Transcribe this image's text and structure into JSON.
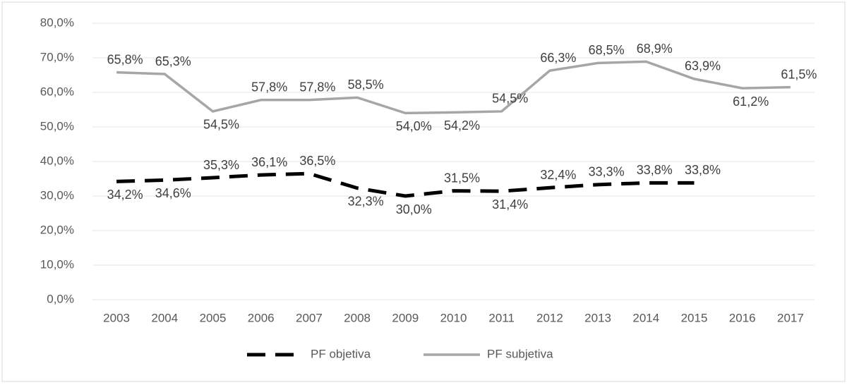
{
  "chart_data": {
    "type": "line",
    "categories": [
      "2003",
      "2004",
      "2005",
      "2006",
      "2007",
      "2008",
      "2009",
      "2010",
      "2011",
      "2012",
      "2013",
      "2014",
      "2015",
      "2016",
      "2017"
    ],
    "series": [
      {
        "name": "PF objetiva",
        "color": "#000000",
        "dash": true,
        "values": [
          34.2,
          34.6,
          35.3,
          36.1,
          36.5,
          32.3,
          30.0,
          31.5,
          31.4,
          32.4,
          33.3,
          33.8,
          33.8,
          null,
          null
        ],
        "value_labels": [
          "34,2%",
          "34,6%",
          "35,3%",
          "36,1%",
          "36,5%",
          "32,3%",
          "30,0%",
          "31,5%",
          "31,4%",
          "32,4%",
          "33,3%",
          "33,8%",
          "33,8%",
          null,
          null
        ]
      },
      {
        "name": "PF subjetiva",
        "color": "#a6a6a6",
        "dash": false,
        "values": [
          65.8,
          65.3,
          54.5,
          57.8,
          57.8,
          58.5,
          54.0,
          54.2,
          54.5,
          66.3,
          68.5,
          68.9,
          63.9,
          61.2,
          61.5
        ],
        "value_labels": [
          "65,8%",
          "65,3%",
          "54,5%",
          "57,8%",
          "57,8%",
          "58,5%",
          "54,0%",
          "54,2%",
          "54,5%",
          "66,3%",
          "68,5%",
          "68,9%",
          "63,9%",
          "61,2%",
          "61,5%"
        ]
      }
    ],
    "ylim": [
      0,
      80
    ],
    "yticks": [
      {
        "value": 0,
        "label": "0,0%"
      },
      {
        "value": 10,
        "label": "10,0%"
      },
      {
        "value": 20,
        "label": "20,0%"
      },
      {
        "value": 30,
        "label": "30,0%"
      },
      {
        "value": 40,
        "label": "40,0%"
      },
      {
        "value": 50,
        "label": "50,0%"
      },
      {
        "value": 60,
        "label": "60,0%"
      },
      {
        "value": 70,
        "label": "70,0%"
      },
      {
        "value": 80,
        "label": "80,0%"
      }
    ],
    "grid": true,
    "legend": "bottom"
  }
}
